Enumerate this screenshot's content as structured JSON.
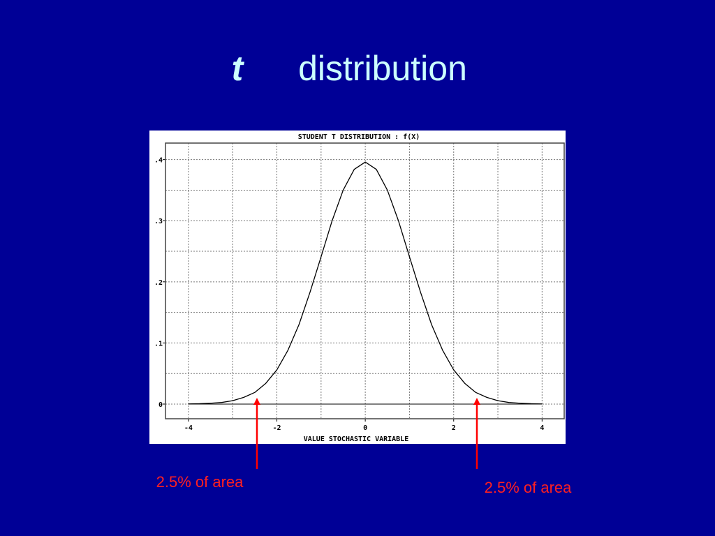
{
  "slide": {
    "title_variable": "t",
    "title_text": "distribution"
  },
  "chart_data": {
    "type": "line",
    "title": "STUDENT T DISTRIBUTION : f(X)",
    "x_label": "VALUE STOCHASTIC VARIABLE",
    "x": [
      -4,
      -3.75,
      -3.5,
      -3.25,
      -3,
      -2.75,
      -2.5,
      -2.25,
      -2,
      -1.75,
      -1.5,
      -1.25,
      -1,
      -0.75,
      -0.5,
      -0.25,
      0,
      0.25,
      0.5,
      0.75,
      1,
      1.25,
      1.5,
      1.75,
      2,
      2.25,
      2.5,
      2.75,
      3,
      3.25,
      3.5,
      3.75,
      4
    ],
    "series": [
      {
        "color": "#000000",
        "values": [
          0.0003,
          0.0006,
          0.0014,
          0.0026,
          0.0055,
          0.011,
          0.019,
          0.034,
          0.056,
          0.088,
          0.13,
          0.183,
          0.241,
          0.3,
          0.35,
          0.384,
          0.396,
          0.384,
          0.35,
          0.3,
          0.241,
          0.183,
          0.13,
          0.088,
          0.056,
          0.034,
          0.019,
          0.011,
          0.0055,
          0.0026,
          0.0014,
          0.0006,
          0.0003
        ]
      }
    ],
    "xlim": [
      -4.52,
      4.5
    ],
    "ylim": [
      -0.024,
      0.427
    ],
    "xticks": [
      -4,
      -2,
      0,
      2,
      4
    ],
    "yticks": [
      0,
      {
        "value": 0.1,
        "label": ".1"
      },
      {
        "value": 0.2,
        "label": ".2"
      },
      {
        "value": 0.3,
        "label": ".3"
      },
      {
        "value": 0.4,
        "label": ".4"
      }
    ],
    "grid": true,
    "annotations": [
      "2.5% of area",
      "2.5% of area"
    ]
  }
}
